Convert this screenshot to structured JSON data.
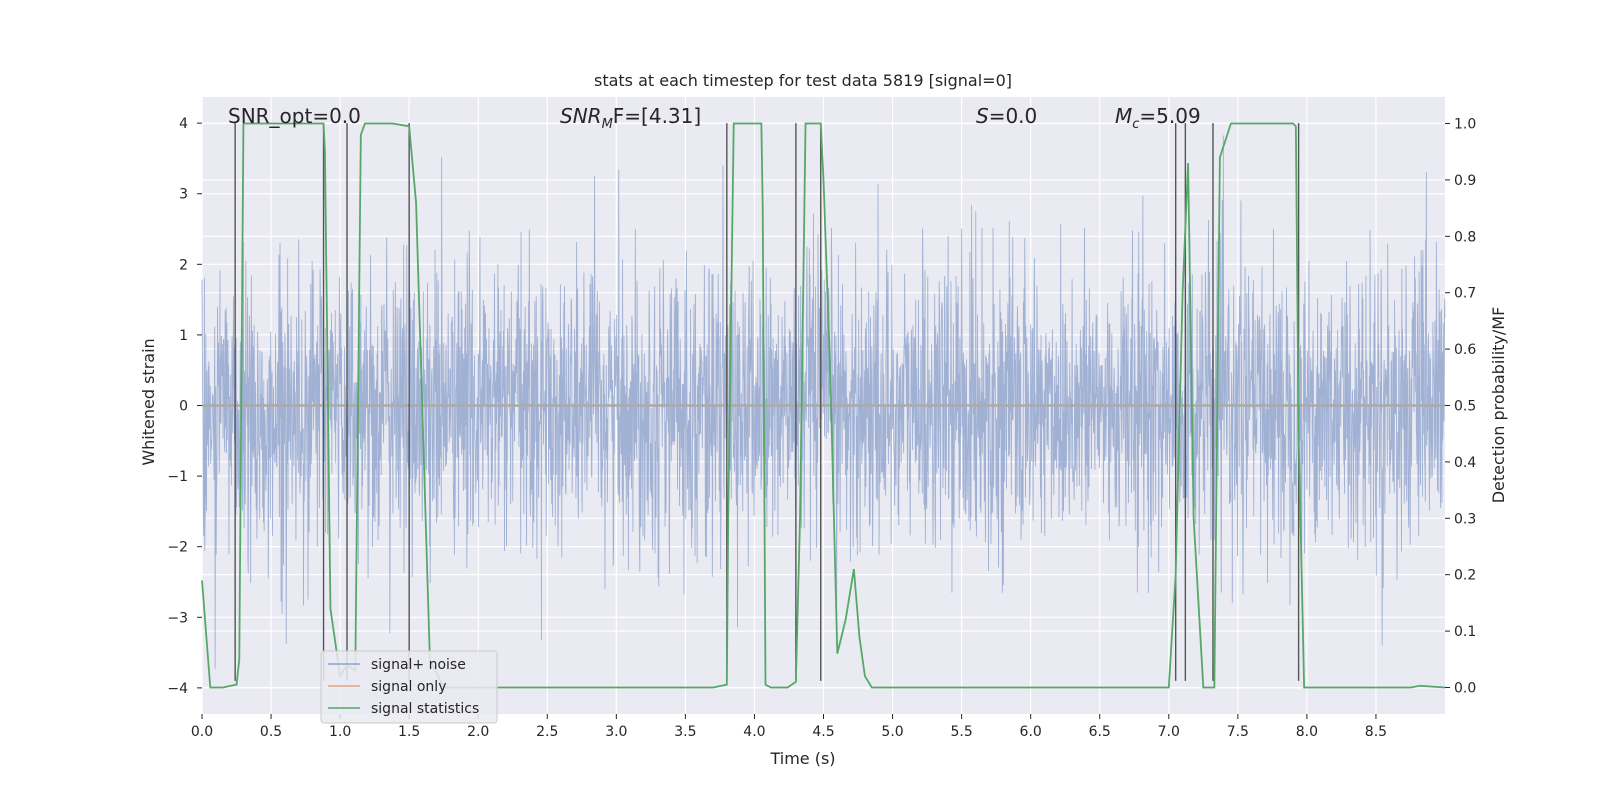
{
  "chart_data": {
    "type": "line",
    "title": "stats at each timestep for test data 5819 [signal=0]",
    "xlabel": "Time (s)",
    "ylabel": "Whitened strain",
    "ylabel_right": "Detection probability/MF",
    "xlim": [
      0,
      9
    ],
    "ylim": [
      -4.37,
      4.37
    ],
    "ylim_right": [
      -0.047,
      1.047
    ],
    "x_ticks": [
      0.0,
      0.5,
      1.0,
      1.5,
      2.0,
      2.5,
      3.0,
      3.5,
      4.0,
      4.5,
      5.0,
      5.5,
      6.0,
      6.5,
      7.0,
      7.5,
      8.0,
      8.5
    ],
    "x_tick_labels": [
      "0.0",
      "0.5",
      "1.0",
      "1.5",
      "2.0",
      "2.5",
      "3.0",
      "3.5",
      "4.0",
      "4.5",
      "5.0",
      "5.5",
      "6.0",
      "6.5",
      "7.0",
      "7.5",
      "8.0",
      "8.5"
    ],
    "y_ticks": [
      4,
      3,
      2,
      1,
      0,
      -1,
      -2,
      -3,
      -4
    ],
    "y_tick_labels": [
      "4",
      "3",
      "2",
      "1",
      "0",
      "−1",
      "−2",
      "−3",
      "−4"
    ],
    "y_right_ticks": [
      1.0,
      0.9,
      0.8,
      0.7,
      0.6,
      0.5,
      0.4,
      0.3,
      0.2,
      0.1,
      0.0
    ],
    "y_right_tick_labels": [
      "1.0",
      "0.9",
      "0.8",
      "0.7",
      "0.6",
      "0.5",
      "0.4",
      "0.3",
      "0.2",
      "0.1",
      "0.0"
    ],
    "grid": true,
    "annotations": {
      "snr_opt": "SNR_opt=0.0",
      "snr_mf_base": "SNR",
      "snr_mf_sub": "M",
      "snr_mf_rest": "F=[4.31]",
      "s_base": "S",
      "s_rest": "=0.0",
      "mc_base": "M",
      "mc_sub": "c",
      "mc_rest": "=5.09"
    },
    "legend": {
      "location": "lower-left",
      "entries": [
        {
          "label": "signal+ noise",
          "color": "#8ea2cc"
        },
        {
          "label": "signal only",
          "color": "#e8a183"
        },
        {
          "label": "signal statistics",
          "color": "#55a868"
        }
      ]
    },
    "series": [
      {
        "name": "signal+ noise",
        "color": "#8ea2cc",
        "type": "noise",
        "approx_std": 1.0,
        "approx_peak_range": [
          -3.9,
          3.9
        ]
      },
      {
        "name": "signal only",
        "color": "#e8a183",
        "values_constant": 0.0
      },
      {
        "name": "signal statistics",
        "color": "#55a868",
        "axis": "right",
        "x": [
          0.0,
          0.06,
          0.15,
          0.25,
          0.27,
          0.3,
          0.88,
          0.89,
          0.93,
          1.0,
          1.05,
          1.11,
          1.15,
          1.18,
          1.28,
          1.38,
          1.5,
          1.55,
          1.65,
          1.75,
          2.0,
          3.0,
          3.7,
          3.8,
          3.81,
          3.85,
          4.05,
          4.06,
          4.08,
          4.12,
          4.24,
          4.3,
          4.33,
          4.37,
          4.48,
          4.5,
          4.55,
          4.6,
          4.66,
          4.72,
          4.76,
          4.8,
          4.85,
          4.93,
          5.0,
          6.0,
          7.0,
          7.05,
          7.1,
          7.14,
          7.18,
          7.25,
          7.3,
          7.33,
          7.37,
          7.45,
          7.9,
          7.92,
          7.94,
          7.98,
          8.0,
          8.5,
          8.75,
          8.82,
          9.0
        ],
        "y": [
          0.19,
          0.0,
          0.0,
          0.005,
          0.05,
          1.0,
          1.0,
          0.95,
          0.14,
          0.02,
          0.04,
          0.03,
          0.98,
          1.0,
          1.0,
          1.0,
          0.995,
          0.86,
          0.05,
          0.0,
          0.0,
          0.0,
          0.0,
          0.005,
          0.3,
          1.0,
          1.0,
          0.85,
          0.005,
          0.0,
          0.0,
          0.01,
          0.3,
          1.0,
          1.0,
          0.9,
          0.55,
          0.06,
          0.12,
          0.21,
          0.09,
          0.02,
          0.0,
          0.0,
          0.0,
          0.0,
          0.0,
          0.2,
          0.7,
          0.93,
          0.3,
          0.0,
          0.0,
          0.0,
          0.94,
          1.0,
          1.0,
          0.995,
          0.45,
          0.0,
          0.0,
          0.0,
          0.0,
          0.003,
          0.0
        ]
      }
    ],
    "vertical_markers_x": [
      0.24,
      0.88,
      1.05,
      1.5,
      3.8,
      4.3,
      4.48,
      7.05,
      7.12,
      7.32,
      7.94
    ]
  }
}
